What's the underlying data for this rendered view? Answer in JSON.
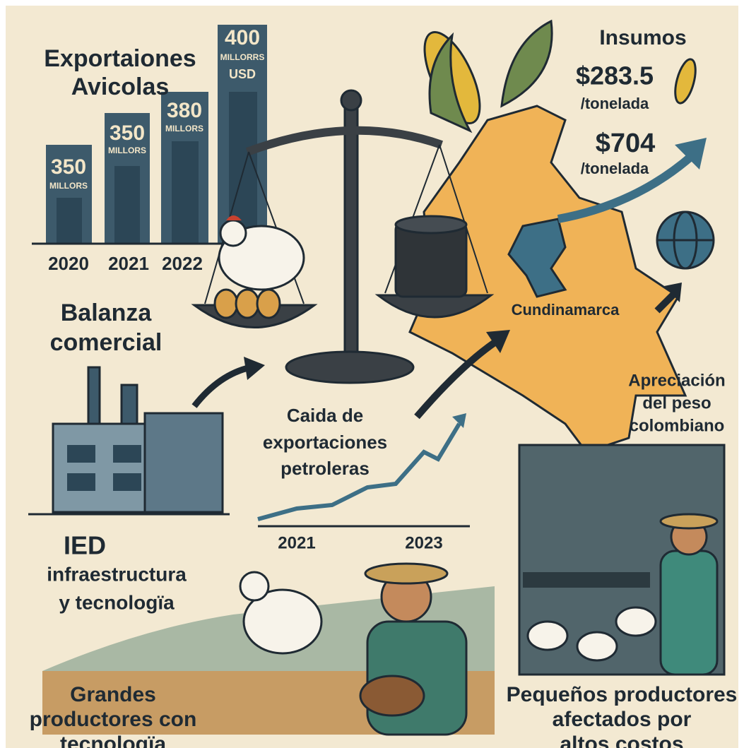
{
  "title": [
    "Exportaiones",
    "Avicolas"
  ],
  "bars": [
    {
      "value": "350",
      "unit": [
        "MILLORS"
      ],
      "year": "2020"
    },
    {
      "value": "350",
      "unit": [
        "MILLORS"
      ],
      "year": "2021"
    },
    {
      "value": "380",
      "unit": [
        "MILLORS"
      ],
      "year": "2022"
    },
    {
      "value": "400",
      "unit": [
        "MILLORRS",
        "USD"
      ]
    }
  ],
  "insumos": {
    "title": "Insumos",
    "prices": [
      {
        "price": "$283.5",
        "unit": "/tonelada"
      },
      {
        "price": "$704",
        "unit": "/tonelada"
      }
    ]
  },
  "balanza": [
    "Balanza",
    "comercial"
  ],
  "region": "Cundinamarca",
  "apreciacion": [
    "Apreciación",
    "del peso",
    "colombiano"
  ],
  "caida": [
    "Caida de",
    "exportaciones",
    "petroleras"
  ],
  "trend_years": [
    "2021",
    "2023"
  ],
  "ied": {
    "title": "IED",
    "lines": [
      "infraestructura",
      "y tecnologïa"
    ]
  },
  "grandes": [
    "Grandes",
    "productores con",
    "tecnologïa"
  ],
  "pequenos": [
    "Pequeños productores",
    "afectados por",
    "altos costos"
  ]
}
